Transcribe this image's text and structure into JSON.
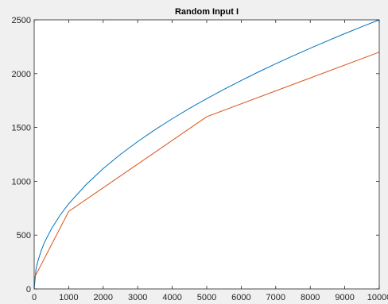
{
  "chart_data": {
    "type": "line",
    "title": "Random Input I",
    "xlabel": "",
    "ylabel": "",
    "xlim": [
      0,
      10000
    ],
    "ylim": [
      0,
      2500
    ],
    "xticks": [
      0,
      1000,
      2000,
      3000,
      4000,
      5000,
      6000,
      7000,
      8000,
      9000,
      10000
    ],
    "yticks": [
      0,
      500,
      1000,
      1500,
      2000,
      2500
    ],
    "grid": false,
    "legend": "none",
    "series": [
      {
        "color": "#0072BD",
        "x": [
          0,
          50,
          100,
          200,
          300,
          500,
          750,
          1000,
          1500,
          2000,
          2500,
          3000,
          3500,
          4000,
          4500,
          5000,
          5500,
          6000,
          6500,
          7000,
          7500,
          8000,
          8500,
          9000,
          9500,
          10000
        ],
        "values": [
          0,
          177,
          250,
          354,
          433,
          559,
          685,
          791,
          968,
          1118,
          1250,
          1369,
          1479,
          1581,
          1677,
          1768,
          1854,
          1936,
          2016,
          2092,
          2165,
          2236,
          2305,
          2372,
          2437,
          2500
        ]
      },
      {
        "color": "#D95319",
        "x": [
          0,
          1000,
          5000,
          10000
        ],
        "values": [
          100,
          720,
          1600,
          2200
        ]
      }
    ]
  }
}
